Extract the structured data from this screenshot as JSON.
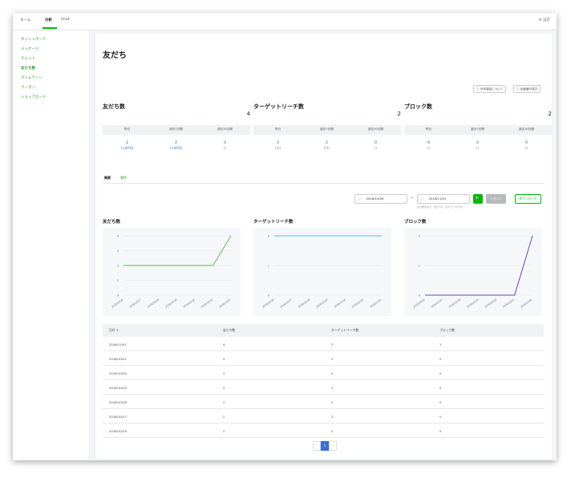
{
  "topbar": {
    "tabs": [
      "ホーム",
      "分析",
      "Chat"
    ],
    "settings": "⚙ 設定"
  },
  "sidebar": {
    "items": [
      "ダッシュボード",
      "メッセージ",
      "チャット",
      "友だち数",
      "タイムライン",
      "クーポン",
      "ショップカード"
    ],
    "active_index": 3
  },
  "main": {
    "title": "友だち",
    "buttons": [
      "ⓘ 分析項目について",
      "ⓘ 比較値の見方"
    ],
    "stats": [
      {
        "title": "友だち数",
        "total": "4",
        "headers": [
          "昨日",
          "過去7日間",
          "過去30日間"
        ],
        "values": [
          "2",
          "2",
          "0"
        ],
        "subs": [
          "(+00%)",
          "(+00%)",
          "()"
        ]
      },
      {
        "title": "ターゲットリーチ数",
        "total": "2",
        "headers": [
          "昨日",
          "過去7日間",
          "過去30日間"
        ],
        "values": [
          "2",
          "2",
          "0"
        ],
        "subs": [
          "(%)",
          "(%)",
          "()"
        ]
      },
      {
        "title": "ブロック数",
        "total": "2",
        "headers": [
          "昨日",
          "過去7日間",
          "過去30日間"
        ],
        "values": [
          "0",
          "0",
          "0"
        ],
        "subs": [
          "()",
          "()",
          "()"
        ]
      }
    ],
    "subtabs": [
      "概要",
      "属性"
    ],
    "date_from": "2018/10/26",
    "date_to": "2018/11/01",
    "tilde": "~",
    "search_icon": "🔍",
    "reset_label": "リセット",
    "download_label": "ダウンロード",
    "date_note": "集計期間最大：過去1年，最大1日 30日間",
    "table": {
      "headers": [
        "日付 ↕",
        "友だち数",
        "ターゲットリーチ数",
        "ブロック数"
      ],
      "rows": [
        [
          "2018/11/01",
          "4",
          "2",
          "2"
        ],
        [
          "2018/10/31",
          "2",
          "2",
          "0"
        ],
        [
          "2018/10/30",
          "2",
          "2",
          "0"
        ],
        [
          "2018/10/29",
          "2",
          "2",
          "0"
        ],
        [
          "2018/10/28",
          "2",
          "2",
          "0"
        ],
        [
          "2018/10/27",
          "2",
          "2",
          "0"
        ],
        [
          "2018/10/26",
          "2",
          "2",
          "0"
        ]
      ]
    },
    "pager": {
      "prev": "‹",
      "current": "1",
      "next": "›"
    }
  },
  "chart_data": [
    {
      "type": "line",
      "title": "友だち数",
      "categories": [
        "2018/10/26",
        "2018/10/27",
        "2018/10/28",
        "2018/10/29",
        "2018/10/30",
        "2018/10/31",
        "2018/11/01"
      ],
      "series": [
        {
          "values": [
            2,
            2,
            2,
            2,
            2,
            2,
            4
          ]
        }
      ],
      "yticks": [
        "0",
        "1",
        "2",
        "3",
        "4"
      ],
      "ylim": [
        0,
        4
      ],
      "color": "#5cb85c"
    },
    {
      "type": "line",
      "title": "ターゲットリーチ数",
      "categories": [
        "2018/10/26",
        "2018/10/27",
        "2018/10/28",
        "2018/10/29",
        "2018/10/30",
        "2018/10/31",
        "2018/11/01"
      ],
      "series": [
        {
          "values": [
            2,
            2,
            2,
            2,
            2,
            2,
            2
          ]
        }
      ],
      "yticks": [
        "0",
        "1",
        "2"
      ],
      "ylim": [
        0,
        2
      ],
      "color": "#5bc0de"
    },
    {
      "type": "line",
      "title": "ブロック数",
      "categories": [
        "2018/10/26",
        "2018/10/27",
        "2018/10/28",
        "2018/10/29",
        "2018/10/30",
        "2018/10/31",
        "2018/11/01"
      ],
      "series": [
        {
          "values": [
            0,
            0,
            0,
            0,
            0,
            0,
            2
          ]
        }
      ],
      "yticks": [
        "0",
        "1",
        "2"
      ],
      "ylim": [
        0,
        2
      ],
      "color": "#6f42c1"
    }
  ]
}
